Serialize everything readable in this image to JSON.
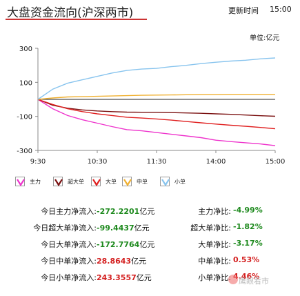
{
  "header": {
    "title": "大盘资金流向(沪深两市)",
    "update_label": "更新时间",
    "update_time": "15:00"
  },
  "unit_label": "单位:亿元",
  "chart_data": {
    "type": "line",
    "x": [
      "9:30",
      "9:45",
      "10:00",
      "10:15",
      "10:30",
      "10:45",
      "11:00",
      "11:15",
      "11:30",
      "13:15",
      "13:30",
      "13:45",
      "14:00",
      "14:15",
      "14:30",
      "14:45",
      "15:00"
    ],
    "xticks": [
      "9:30",
      "10:30",
      "11:30",
      "14:00",
      "15:00"
    ],
    "yticks": [
      300,
      100,
      -100,
      -300
    ],
    "ylim": [
      -300,
      300
    ],
    "zero_line": true,
    "series": [
      {
        "name": "主力",
        "color": "#ee33cc",
        "values": [
          0,
          -55,
          -95,
          -120,
          -140,
          -160,
          -178,
          -185,
          -195,
          -205,
          -215,
          -225,
          -240,
          -248,
          -255,
          -262,
          -272.22
        ]
      },
      {
        "name": "超大单",
        "color": "#7a1010",
        "values": [
          0,
          -35,
          -52,
          -62,
          -68,
          -72,
          -75,
          -76,
          -76,
          -78,
          -80,
          -82,
          -85,
          -88,
          -92,
          -96,
          -99.44
        ]
      },
      {
        "name": "大单",
        "color": "#e02020",
        "values": [
          0,
          -30,
          -55,
          -72,
          -85,
          -95,
          -105,
          -110,
          -115,
          -122,
          -130,
          -138,
          -145,
          -152,
          -158,
          -165,
          -172.78
        ]
      },
      {
        "name": "中单",
        "color": "#f0b030",
        "values": [
          0,
          8,
          14,
          16,
          18,
          20,
          22,
          24,
          25,
          26,
          27,
          28,
          28,
          29,
          29,
          29,
          28.86
        ]
      },
      {
        "name": "小单",
        "color": "#88c4ee",
        "values": [
          0,
          60,
          95,
          115,
          135,
          155,
          170,
          178,
          182,
          192,
          200,
          210,
          218,
          225,
          230,
          238,
          243.36
        ]
      }
    ]
  },
  "legend": [
    {
      "label": "主力",
      "color": "#ee33cc"
    },
    {
      "label": "超大单",
      "color": "#7a1010"
    },
    {
      "label": "大单",
      "color": "#e02020"
    },
    {
      "label": "中单",
      "color": "#f0b030"
    },
    {
      "label": "小单",
      "color": "#88c4ee"
    }
  ],
  "stats": [
    {
      "label": "今日主力净流入:",
      "value": "-272.2201",
      "unit": "亿元",
      "sign": "neg",
      "ratio_label": "主力净比:",
      "ratio": "-4.99%",
      "ratio_sign": "neg"
    },
    {
      "label": "今日超大单净流入:",
      "value": "-99.4437",
      "unit": "亿元",
      "sign": "neg",
      "ratio_label": "超大单净比:",
      "ratio": "-1.82%",
      "ratio_sign": "neg"
    },
    {
      "label": "今日大单净流入:",
      "value": "-172.7764",
      "unit": "亿元",
      "sign": "neg",
      "ratio_label": "大单净比:",
      "ratio": "-3.17%",
      "ratio_sign": "neg"
    },
    {
      "label": "今日中单净流入:",
      "value": "28.8643",
      "unit": "亿元",
      "sign": "pos",
      "ratio_label": "中单净比:",
      "ratio": "0.53%",
      "ratio_sign": "pos"
    },
    {
      "label": "今日小单净流入:",
      "value": "243.3557",
      "unit": "亿元",
      "sign": "pos",
      "ratio_label": "小单净比:",
      "ratio": "4.46%",
      "ratio_sign": "pos"
    }
  ],
  "watermark": "鹰眼看市"
}
